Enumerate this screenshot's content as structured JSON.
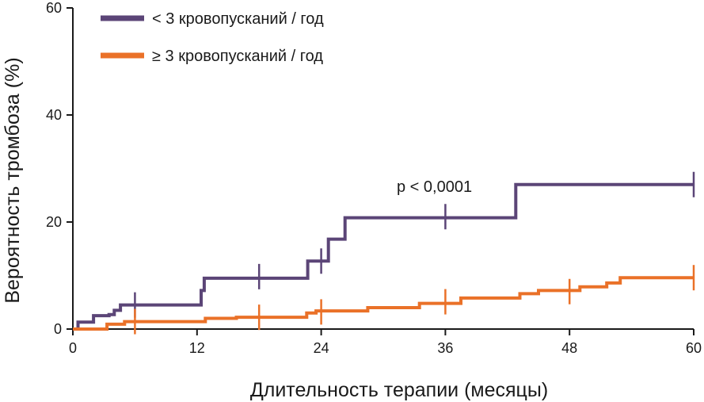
{
  "chart_data": {
    "type": "line",
    "step": true,
    "xlabel": "Длительность терапии (месяцы)",
    "ylabel": "Вероятность тромбоза (%)",
    "xlim": [
      0,
      60
    ],
    "ylim": [
      0,
      60
    ],
    "xticks": [
      0,
      12,
      24,
      36,
      48,
      60
    ],
    "yticks": [
      0,
      20,
      40,
      60
    ],
    "grid": false,
    "legend_position": "top-left",
    "annotation": "p < 0,0001",
    "series": [
      {
        "name": "< 3 кровопусканий / год",
        "color": "#5b4577",
        "points": [
          [
            0.5,
            0
          ],
          [
            0.5,
            1.3
          ],
          [
            2.0,
            1.3
          ],
          [
            2.0,
            2.5
          ],
          [
            3.5,
            2.5
          ],
          [
            3.5,
            2.7
          ],
          [
            4.0,
            2.7
          ],
          [
            4.0,
            3.5
          ],
          [
            4.6,
            3.5
          ],
          [
            4.6,
            4.5
          ],
          [
            12.4,
            4.5
          ],
          [
            12.4,
            7.2
          ],
          [
            12.7,
            7.2
          ],
          [
            12.7,
            9.5
          ],
          [
            22.7,
            9.5
          ],
          [
            22.7,
            12.7
          ],
          [
            24.7,
            12.7
          ],
          [
            24.7,
            16.8
          ],
          [
            26.3,
            16.8
          ],
          [
            26.3,
            20.8
          ],
          [
            42.8,
            20.8
          ],
          [
            42.8,
            27.0
          ],
          [
            60,
            27.0
          ]
        ],
        "censored": [
          [
            6,
            4.5
          ],
          [
            18,
            9.8
          ],
          [
            24,
            12.7
          ],
          [
            36,
            21
          ],
          [
            60,
            27
          ]
        ]
      },
      {
        "name": "≥ 3 кровопусканий / год",
        "color": "#ea7128",
        "points": [
          [
            0,
            0
          ],
          [
            3.3,
            0
          ],
          [
            3.3,
            0.9
          ],
          [
            5.0,
            0.9
          ],
          [
            5.0,
            1.4
          ],
          [
            12.8,
            1.4
          ],
          [
            12.8,
            2.0
          ],
          [
            15.8,
            2.0
          ],
          [
            15.8,
            2.2
          ],
          [
            22.6,
            2.2
          ],
          [
            22.6,
            3.0
          ],
          [
            23.5,
            3.0
          ],
          [
            23.5,
            3.4
          ],
          [
            28.5,
            3.4
          ],
          [
            28.5,
            4.0
          ],
          [
            33.5,
            4.0
          ],
          [
            33.5,
            4.8
          ],
          [
            37.5,
            4.8
          ],
          [
            37.5,
            5.8
          ],
          [
            43.2,
            5.8
          ],
          [
            43.2,
            6.6
          ],
          [
            45.0,
            6.6
          ],
          [
            45.0,
            7.2
          ],
          [
            49.0,
            7.2
          ],
          [
            49.0,
            7.9
          ],
          [
            51.6,
            7.9
          ],
          [
            51.6,
            8.6
          ],
          [
            52.9,
            8.6
          ],
          [
            52.9,
            9.6
          ],
          [
            60,
            9.6
          ]
        ],
        "censored": [
          [
            6,
            1.4
          ],
          [
            18,
            2.2
          ],
          [
            24,
            3.2
          ],
          [
            36,
            5.1
          ],
          [
            48,
            7.0
          ],
          [
            60,
            9.6
          ]
        ]
      }
    ]
  }
}
